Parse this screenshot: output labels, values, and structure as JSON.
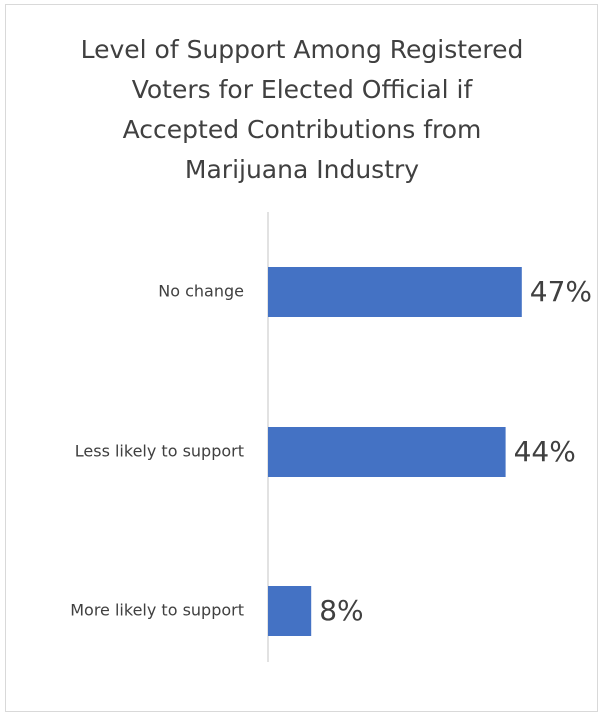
{
  "chart_data": {
    "type": "bar",
    "orientation": "horizontal",
    "title_lines": [
      "Level of Support Among Registered",
      "Voters for Elected Official if",
      "Accepted Contributions from",
      "Marijuana Industry"
    ],
    "categories": [
      "No change",
      "Less likely to support",
      "More likely to support"
    ],
    "values": [
      47,
      44,
      8
    ],
    "data_labels": [
      "47%",
      "44%",
      "8%"
    ],
    "unit": "%",
    "xlim": [
      0,
      50
    ],
    "grid": false,
    "legend": "none",
    "bar_color": "#4472C4",
    "axis_color": "#d9d9d9",
    "label_color": "#404040"
  }
}
